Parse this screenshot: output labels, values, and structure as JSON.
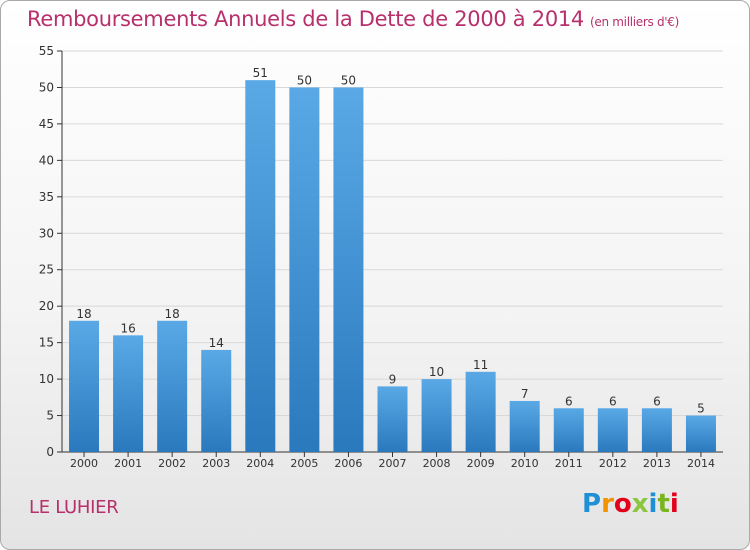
{
  "chart_data": {
    "type": "bar",
    "title": "Remboursements Annuels de la Dette de 2000 à 2014",
    "unit_label": "(en milliers d'€)",
    "categories": [
      "2000",
      "2001",
      "2002",
      "2003",
      "2004",
      "2005",
      "2006",
      "2007",
      "2008",
      "2009",
      "2010",
      "2011",
      "2012",
      "2013",
      "2014"
    ],
    "values": [
      18,
      16,
      18,
      14,
      51,
      50,
      50,
      9,
      10,
      11,
      7,
      6,
      6,
      6,
      5
    ],
    "ylim": [
      0,
      55
    ],
    "yticks": [
      0,
      5,
      10,
      15,
      20,
      25,
      30,
      35,
      40,
      45,
      50,
      55
    ],
    "grid": true,
    "bar_color_top": "#5aa9e6",
    "bar_color_bottom": "#2a79bd"
  },
  "footer": {
    "commune": "LE LUHIER",
    "logo_text": "Proxiti",
    "logo_colors": [
      "#1f8fd6",
      "#f39200",
      "#e2001a",
      "#8cc63f",
      "#1f8fd6",
      "#7ab51d",
      "#e2001a"
    ]
  }
}
